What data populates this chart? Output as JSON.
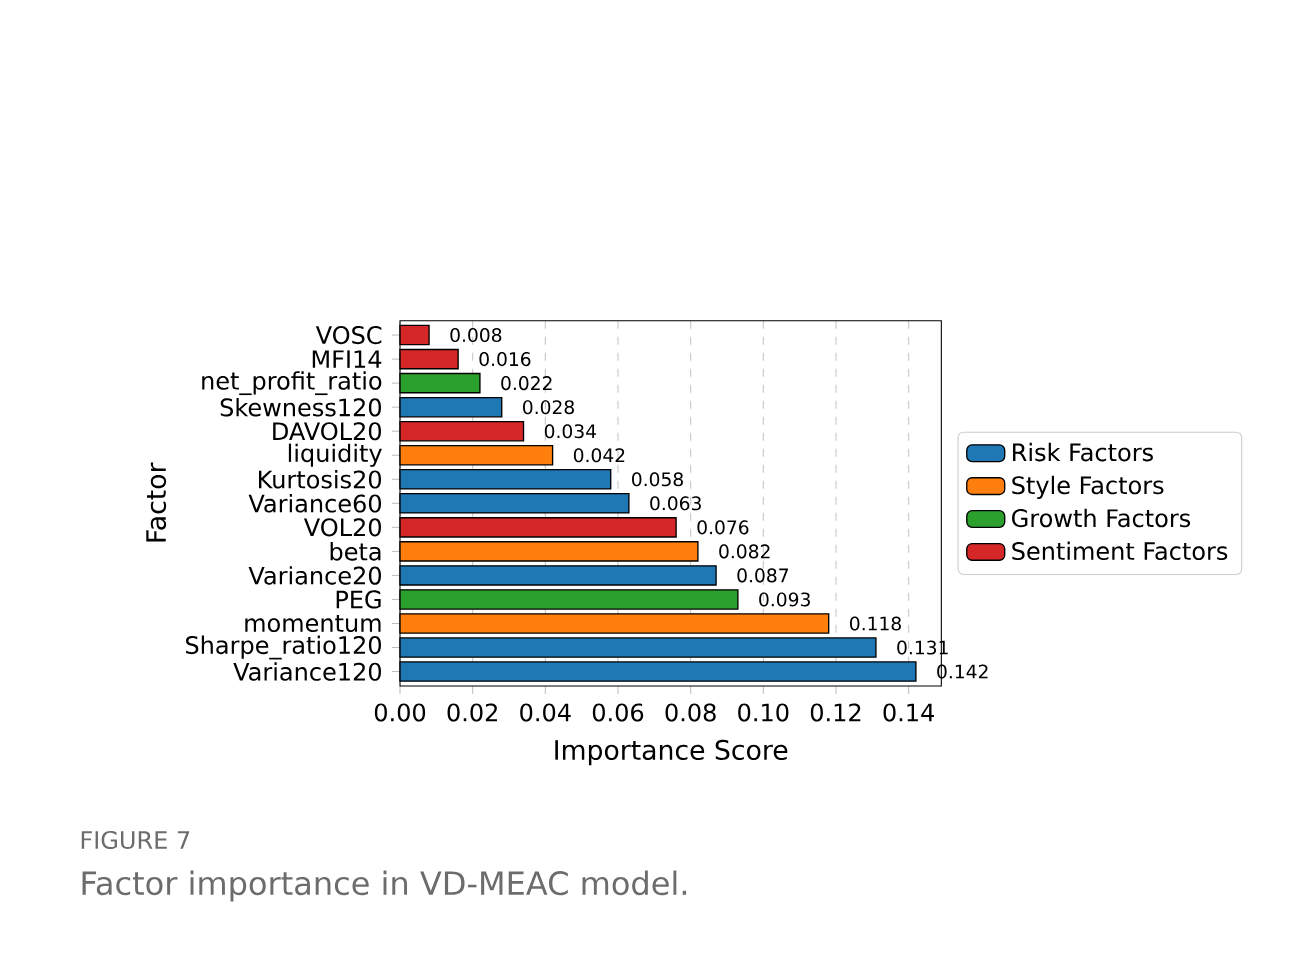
{
  "chart_data": {
    "type": "bar",
    "orientation": "horizontal",
    "xlabel": "Importance Score",
    "ylabel": "Factor",
    "categories": [
      "VOSC",
      "MFI14",
      "net_profit_ratio",
      "Skewness120",
      "DAVOL20",
      "liquidity",
      "Kurtosis20",
      "Variance60",
      "VOL20",
      "beta",
      "Variance20",
      "PEG",
      "momentum",
      "Sharpe_ratio120",
      "Variance120"
    ],
    "series": [
      {
        "name": "Risk Factors",
        "color": "#1f77b4",
        "values": [
          null,
          null,
          null,
          0.028,
          null,
          null,
          0.058,
          0.063,
          null,
          null,
          0.087,
          null,
          null,
          0.131,
          0.142
        ]
      },
      {
        "name": "Style Factors",
        "color": "#ff7f0e",
        "values": [
          null,
          null,
          null,
          null,
          null,
          0.042,
          null,
          null,
          null,
          0.082,
          null,
          null,
          0.118,
          null,
          null
        ]
      },
      {
        "name": "Growth Factors",
        "color": "#2ca02c",
        "values": [
          null,
          null,
          0.022,
          null,
          null,
          null,
          null,
          null,
          null,
          null,
          null,
          0.093,
          null,
          null,
          null
        ]
      },
      {
        "name": "Sentiment Factors",
        "color": "#d62728",
        "values": [
          0.008,
          0.016,
          null,
          null,
          0.034,
          null,
          null,
          null,
          0.076,
          null,
          null,
          null,
          null,
          null,
          null
        ]
      }
    ],
    "xlim": [
      0,
      0.149
    ],
    "xticks": [
      {
        "value": 0,
        "label": "0.00"
      },
      0.02,
      0.04,
      0.06,
      0.08,
      {
        "value": 0.1,
        "label": "0.10"
      },
      0.12,
      0.14
    ],
    "data_labels": true,
    "grid": "x",
    "legend": "right",
    "annotations": [
      "FIGURE 7",
      "Factor importance in VD-MEAC model."
    ]
  }
}
